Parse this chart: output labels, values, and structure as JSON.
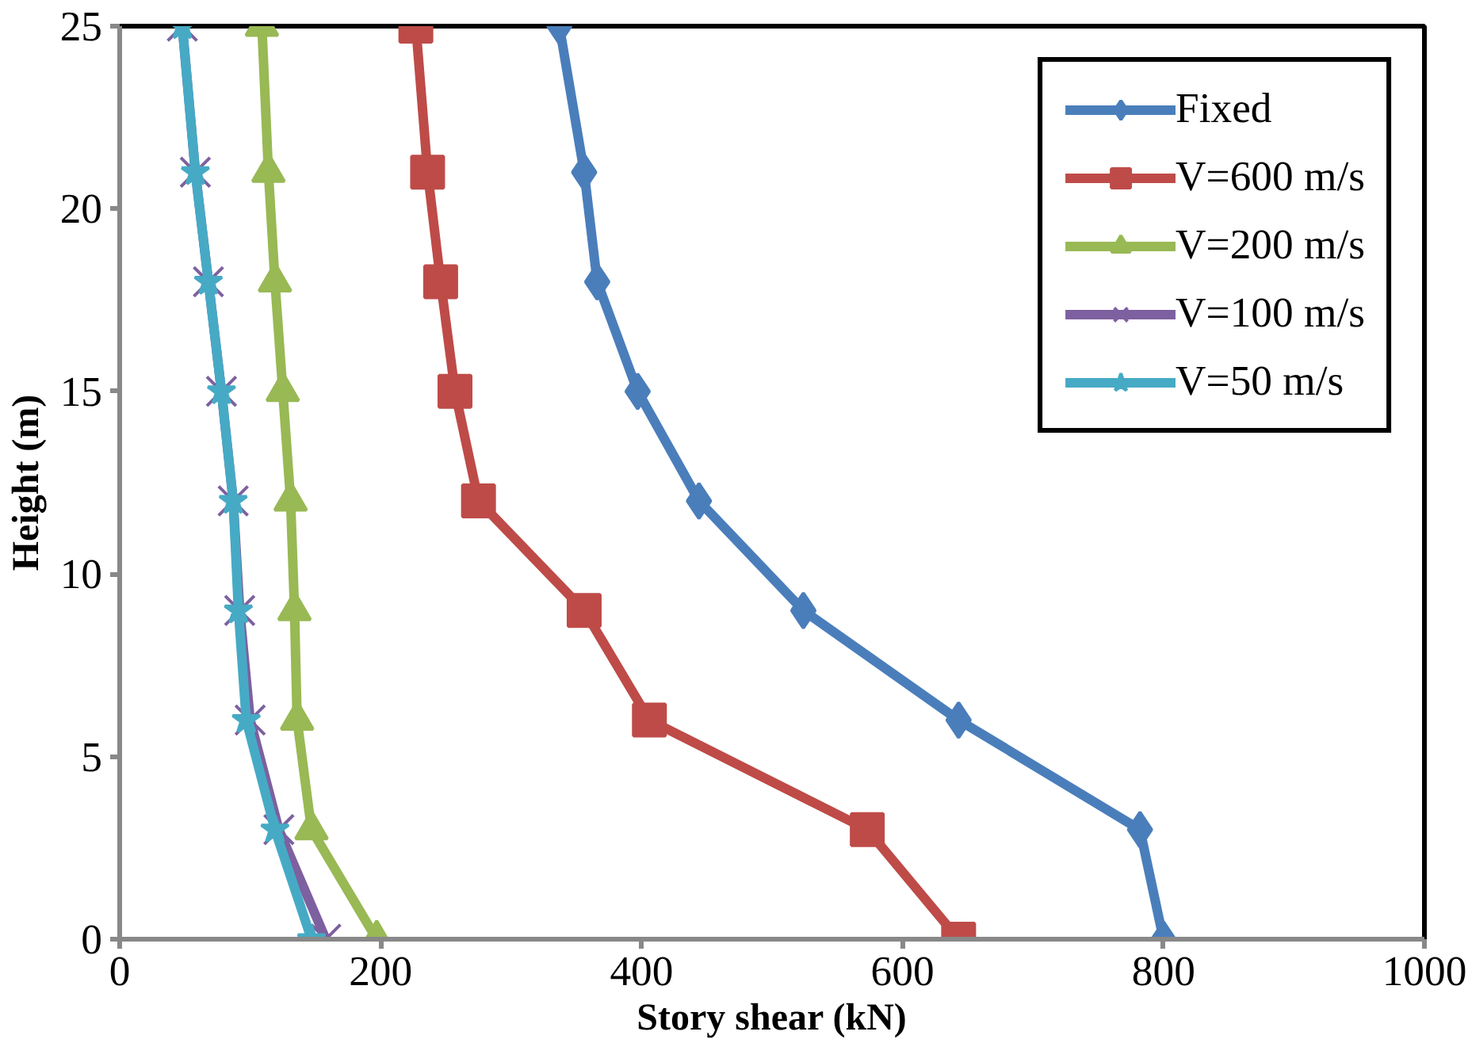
{
  "chart_data": {
    "type": "line",
    "xlabel": "Story shear (kN)",
    "ylabel": "Height (m)",
    "xlim": [
      0,
      1000
    ],
    "xticks": [
      0,
      200,
      400,
      600,
      800,
      1000
    ],
    "ylim": [
      0,
      25
    ],
    "yticks": [
      0,
      5,
      10,
      15,
      20,
      25
    ],
    "grid": false,
    "legend": "top right",
    "line_style": "solid",
    "series": [
      {
        "name": "Fixed",
        "color": "#4a7ebb",
        "marker": "diamond",
        "x": [
          800,
          782,
          643,
          524,
          444,
          397,
          366,
          356,
          337
        ],
        "values": [
          0,
          3,
          6,
          9,
          12,
          15,
          18,
          21,
          25
        ]
      },
      {
        "name": "V=600 m/s",
        "color": "#be4b48",
        "marker": "square",
        "x": [
          643,
          573,
          406,
          356,
          275,
          257,
          246,
          236,
          227
        ],
        "values": [
          0,
          3,
          6,
          9,
          12,
          15,
          18,
          21,
          25
        ]
      },
      {
        "name": "V=200 m/s",
        "color": "#98b954",
        "marker": "triangle",
        "x": [
          197,
          147,
          136,
          134,
          131,
          125,
          119,
          114,
          109
        ],
        "values": [
          0,
          3,
          6,
          9,
          12,
          15,
          18,
          21,
          25
        ]
      },
      {
        "name": "V=100 m/s",
        "color": "#7d60a0",
        "marker": "cross",
        "x": [
          158,
          122,
          100,
          92,
          87,
          78,
          68,
          58,
          48
        ],
        "values": [
          0,
          3,
          6,
          9,
          12,
          15,
          18,
          21,
          25
        ]
      },
      {
        "name": "V=50 m/s",
        "color": "#46aac5",
        "marker": "star",
        "x": [
          147,
          119,
          97,
          91,
          87,
          78,
          68,
          58,
          48
        ],
        "values": [
          0,
          3,
          6,
          9,
          12,
          15,
          18,
          21,
          25
        ]
      }
    ]
  }
}
